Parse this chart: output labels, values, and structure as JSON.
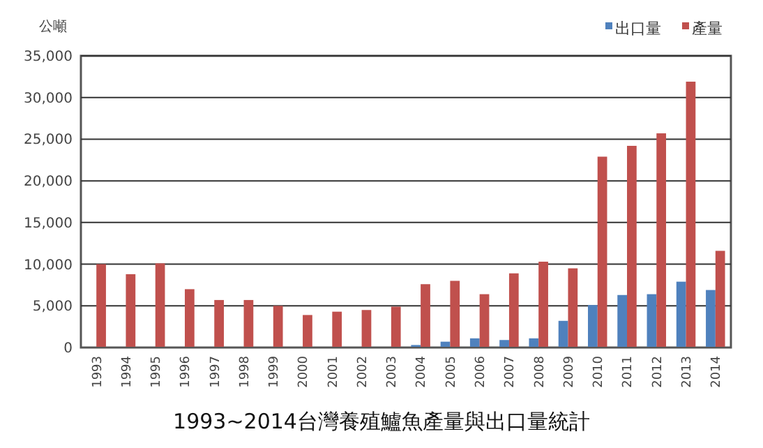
{
  "chart_data": {
    "type": "bar",
    "title": "1993~2014台灣養殖鱸魚產量與出口量統計",
    "ylabel": "公噸",
    "categories": [
      "1993",
      "1994",
      "1995",
      "1996",
      "1997",
      "1998",
      "1999",
      "2000",
      "2001",
      "2002",
      "2003",
      "2004",
      "2005",
      "2006",
      "2007",
      "2008",
      "2009",
      "2010",
      "2011",
      "2012",
      "2013",
      "2014"
    ],
    "series": [
      {
        "name": "出口量",
        "color": "#4f81bd",
        "values": [
          0,
          0,
          0,
          0,
          0,
          0,
          0,
          0,
          0,
          0,
          null,
          300,
          700,
          1100,
          900,
          1100,
          3200,
          5100,
          6300,
          6400,
          7900,
          6900
        ]
      },
      {
        "name": "產量",
        "color": "#c0504d",
        "values": [
          10000,
          8800,
          10100,
          7000,
          5700,
          5700,
          5000,
          3900,
          4300,
          4500,
          4900,
          7600,
          8000,
          6400,
          8900,
          10300,
          9500,
          22900,
          24200,
          25700,
          31900,
          11600
        ]
      }
    ],
    "ylim": [
      0,
      35000
    ],
    "yticks": [
      {
        "value": 0,
        "label": "0"
      },
      {
        "value": 5000,
        "label": "5,000"
      },
      {
        "value": 10000,
        "label": "10,000"
      },
      {
        "value": 15000,
        "label": "15,000"
      },
      {
        "value": 20000,
        "label": "20,000"
      },
      {
        "value": 25000,
        "label": "25,000"
      },
      {
        "value": 30000,
        "label": "30,000"
      },
      {
        "value": 35000,
        "label": "35,000"
      }
    ],
    "grid": "y",
    "legend": "top right"
  }
}
